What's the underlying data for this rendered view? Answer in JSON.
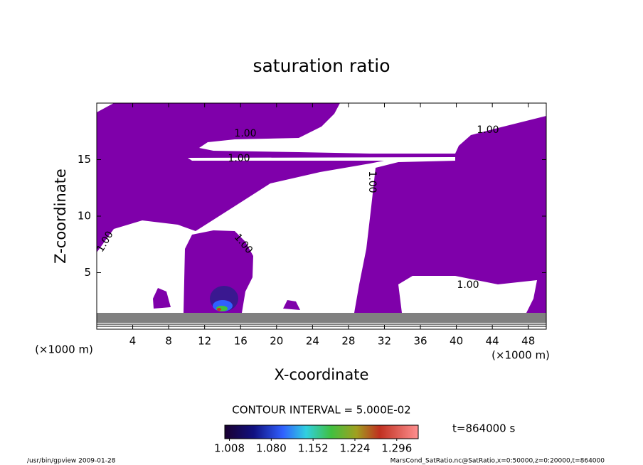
{
  "chart_data": {
    "type": "contour",
    "title": "saturation ratio",
    "x_label": "X-coordinate",
    "y_label": "Z-coordinate",
    "y_unit": "(×1000 m)",
    "x_unit": "(×1000 m)",
    "xlim": [
      0,
      50
    ],
    "ylim": [
      0,
      20
    ],
    "xticks": [
      4,
      8,
      12,
      16,
      20,
      24,
      28,
      32,
      36,
      40,
      44,
      48
    ],
    "yticks": [
      5,
      10,
      15
    ],
    "fill_color": "#7f00aa",
    "contour_labels": [
      "1.00",
      "1.00",
      "1.00",
      "1.00",
      "1.00",
      "1.00",
      "1.00"
    ],
    "contour_interval": "CONTOUR INTERVAL = 5.000E-02",
    "clim": [
      1.0,
      1.333
    ],
    "colorbar_ticks": [
      1.008,
      {
        "value": 1.08,
        "label": "1.080"
      },
      1.152,
      1.224,
      1.296
    ],
    "time": "t=864000 s",
    "footer_left": "/usr/bin/gpview  2009-01-28",
    "footer_right": "MarsCond_SatRatio.nc@SatRatio,x=0:50000,z=0:20000,t=864000"
  }
}
